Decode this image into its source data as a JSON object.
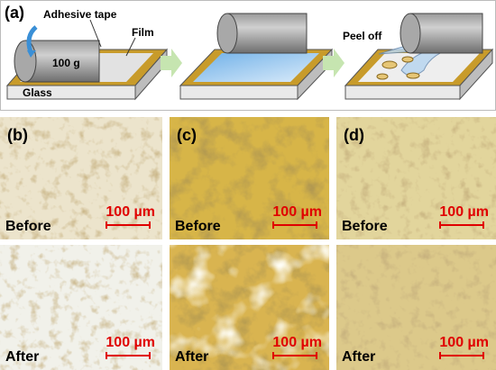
{
  "panel_a": {
    "label": "(a)",
    "tape": "Adhesive tape",
    "film": "Film",
    "weight": "100 g",
    "substrate": "Glass",
    "action": "Peel off"
  },
  "panels": [
    {
      "label": "(b)",
      "images": [
        {
          "caption": "Before",
          "scale_bar": "100 µm"
        },
        {
          "caption": "After",
          "scale_bar": "100 µm"
        }
      ]
    },
    {
      "label": "(c)",
      "images": [
        {
          "caption": "Before",
          "scale_bar": "100 µm"
        },
        {
          "caption": "After",
          "scale_bar": "100 µm"
        }
      ]
    },
    {
      "label": "(d)",
      "images": [
        {
          "caption": "Before",
          "scale_bar": "100 µm"
        },
        {
          "caption": "After",
          "scale_bar": "100 µm"
        }
      ]
    }
  ]
}
